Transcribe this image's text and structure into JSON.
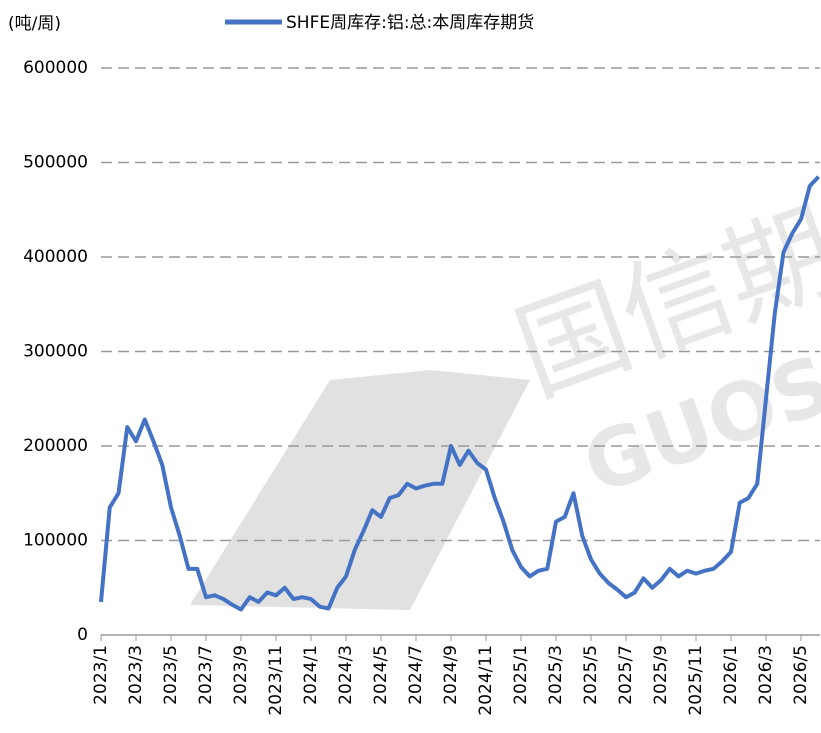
{
  "chart_data": {
    "type": "line",
    "unit_label": "(吨/周)",
    "watermark": [
      "国信期",
      "GUOS"
    ],
    "categories": [
      "2023/1",
      null,
      null,
      null,
      "2023/3",
      null,
      null,
      null,
      "2023/5",
      null,
      null,
      null,
      "2023/7",
      null,
      null,
      null,
      "2023/9",
      null,
      null,
      null,
      "2023/11",
      null,
      null,
      null,
      "2024/1",
      null,
      null,
      null,
      "2024/3",
      null,
      null,
      null,
      "2024/5",
      null,
      null,
      null,
      "2024/7",
      null,
      null,
      null,
      "2024/9",
      null,
      null,
      null,
      "2024/11",
      null,
      null,
      null,
      "2025/1",
      null,
      null,
      null,
      "2025/3",
      null,
      null,
      null,
      "2025/5",
      null,
      null,
      null,
      "2025/7",
      null,
      null,
      null,
      "2025/9",
      null,
      null,
      null,
      "2025/11",
      null,
      null,
      null,
      "2026/1",
      null,
      null,
      null,
      "2026/3",
      null,
      null,
      null,
      "2026/5",
      null,
      null
    ],
    "series": [
      {
        "name": "SHFE周库存:铝:总:本周库存期货",
        "color": "#4472c4",
        "values": [
          35000,
          135000,
          150000,
          220000,
          205000,
          228000,
          205000,
          180000,
          135000,
          105000,
          70000,
          70000,
          40000,
          42000,
          38000,
          32000,
          27000,
          40000,
          35000,
          45000,
          42000,
          50000,
          38000,
          40000,
          38000,
          30000,
          28000,
          50000,
          62000,
          90000,
          110000,
          132000,
          125000,
          145000,
          148000,
          160000,
          155000,
          158000,
          160000,
          160000,
          200000,
          180000,
          195000,
          182000,
          175000,
          145000,
          120000,
          90000,
          72000,
          62000,
          68000,
          70000,
          120000,
          125000,
          150000,
          105000,
          80000,
          65000,
          55000,
          48000,
          40000,
          45000,
          60000,
          50000,
          58000,
          70000,
          62000,
          68000,
          65000,
          68000,
          70000,
          78000,
          88000,
          140000,
          145000,
          160000,
          250000,
          340000,
          405000,
          425000,
          440000,
          475000,
          485000
        ]
      }
    ],
    "ylim": [
      0,
      600000
    ],
    "yticks": [
      0,
      100000,
      200000,
      300000,
      400000,
      500000,
      600000
    ],
    "grid": true
  }
}
